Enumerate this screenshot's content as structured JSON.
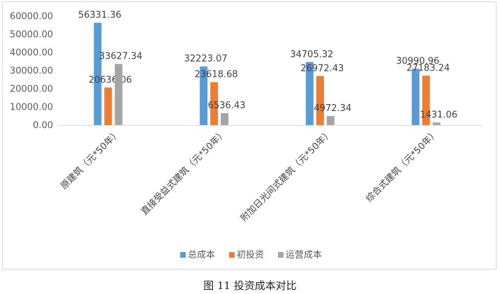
{
  "chart_data": {
    "type": "bar",
    "categories": [
      "原建筑（元*50年）",
      "直接受益式建筑（元*50年）",
      "附加日光间式建筑（元*50年）",
      "综合式建筑（元*50年）"
    ],
    "series": [
      {
        "name": "总成本",
        "values": [
          56331.36,
          32223.07,
          34705.32,
          30990.96
        ],
        "labels": [
          "56331.36",
          "32223.07",
          "34705.32",
          "30990.96"
        ],
        "color": "#5b9bd5"
      },
      {
        "name": "初投资",
        "values": [
          20636.06,
          23618.68,
          26972.43,
          27183.24
        ],
        "labels": [
          "20636.06",
          "23618.68",
          "26972.43",
          "27183.24"
        ],
        "color": "#ed7d31"
      },
      {
        "name": "运营成本",
        "values": [
          33627.34,
          6536.43,
          4972.34,
          1431.06
        ],
        "labels": [
          "33627.34",
          "6536.43",
          "4972.34",
          "1431.06"
        ],
        "color": "#a5a5a5"
      }
    ],
    "yticks": [
      "0.00",
      "10000.00",
      "20000.00",
      "30000.00",
      "40000.00",
      "50000.00",
      "60000.00"
    ],
    "ylim": [
      0,
      60000
    ],
    "legend_position": "bottom",
    "grid": false
  },
  "caption": "图 11  投资成本对比"
}
